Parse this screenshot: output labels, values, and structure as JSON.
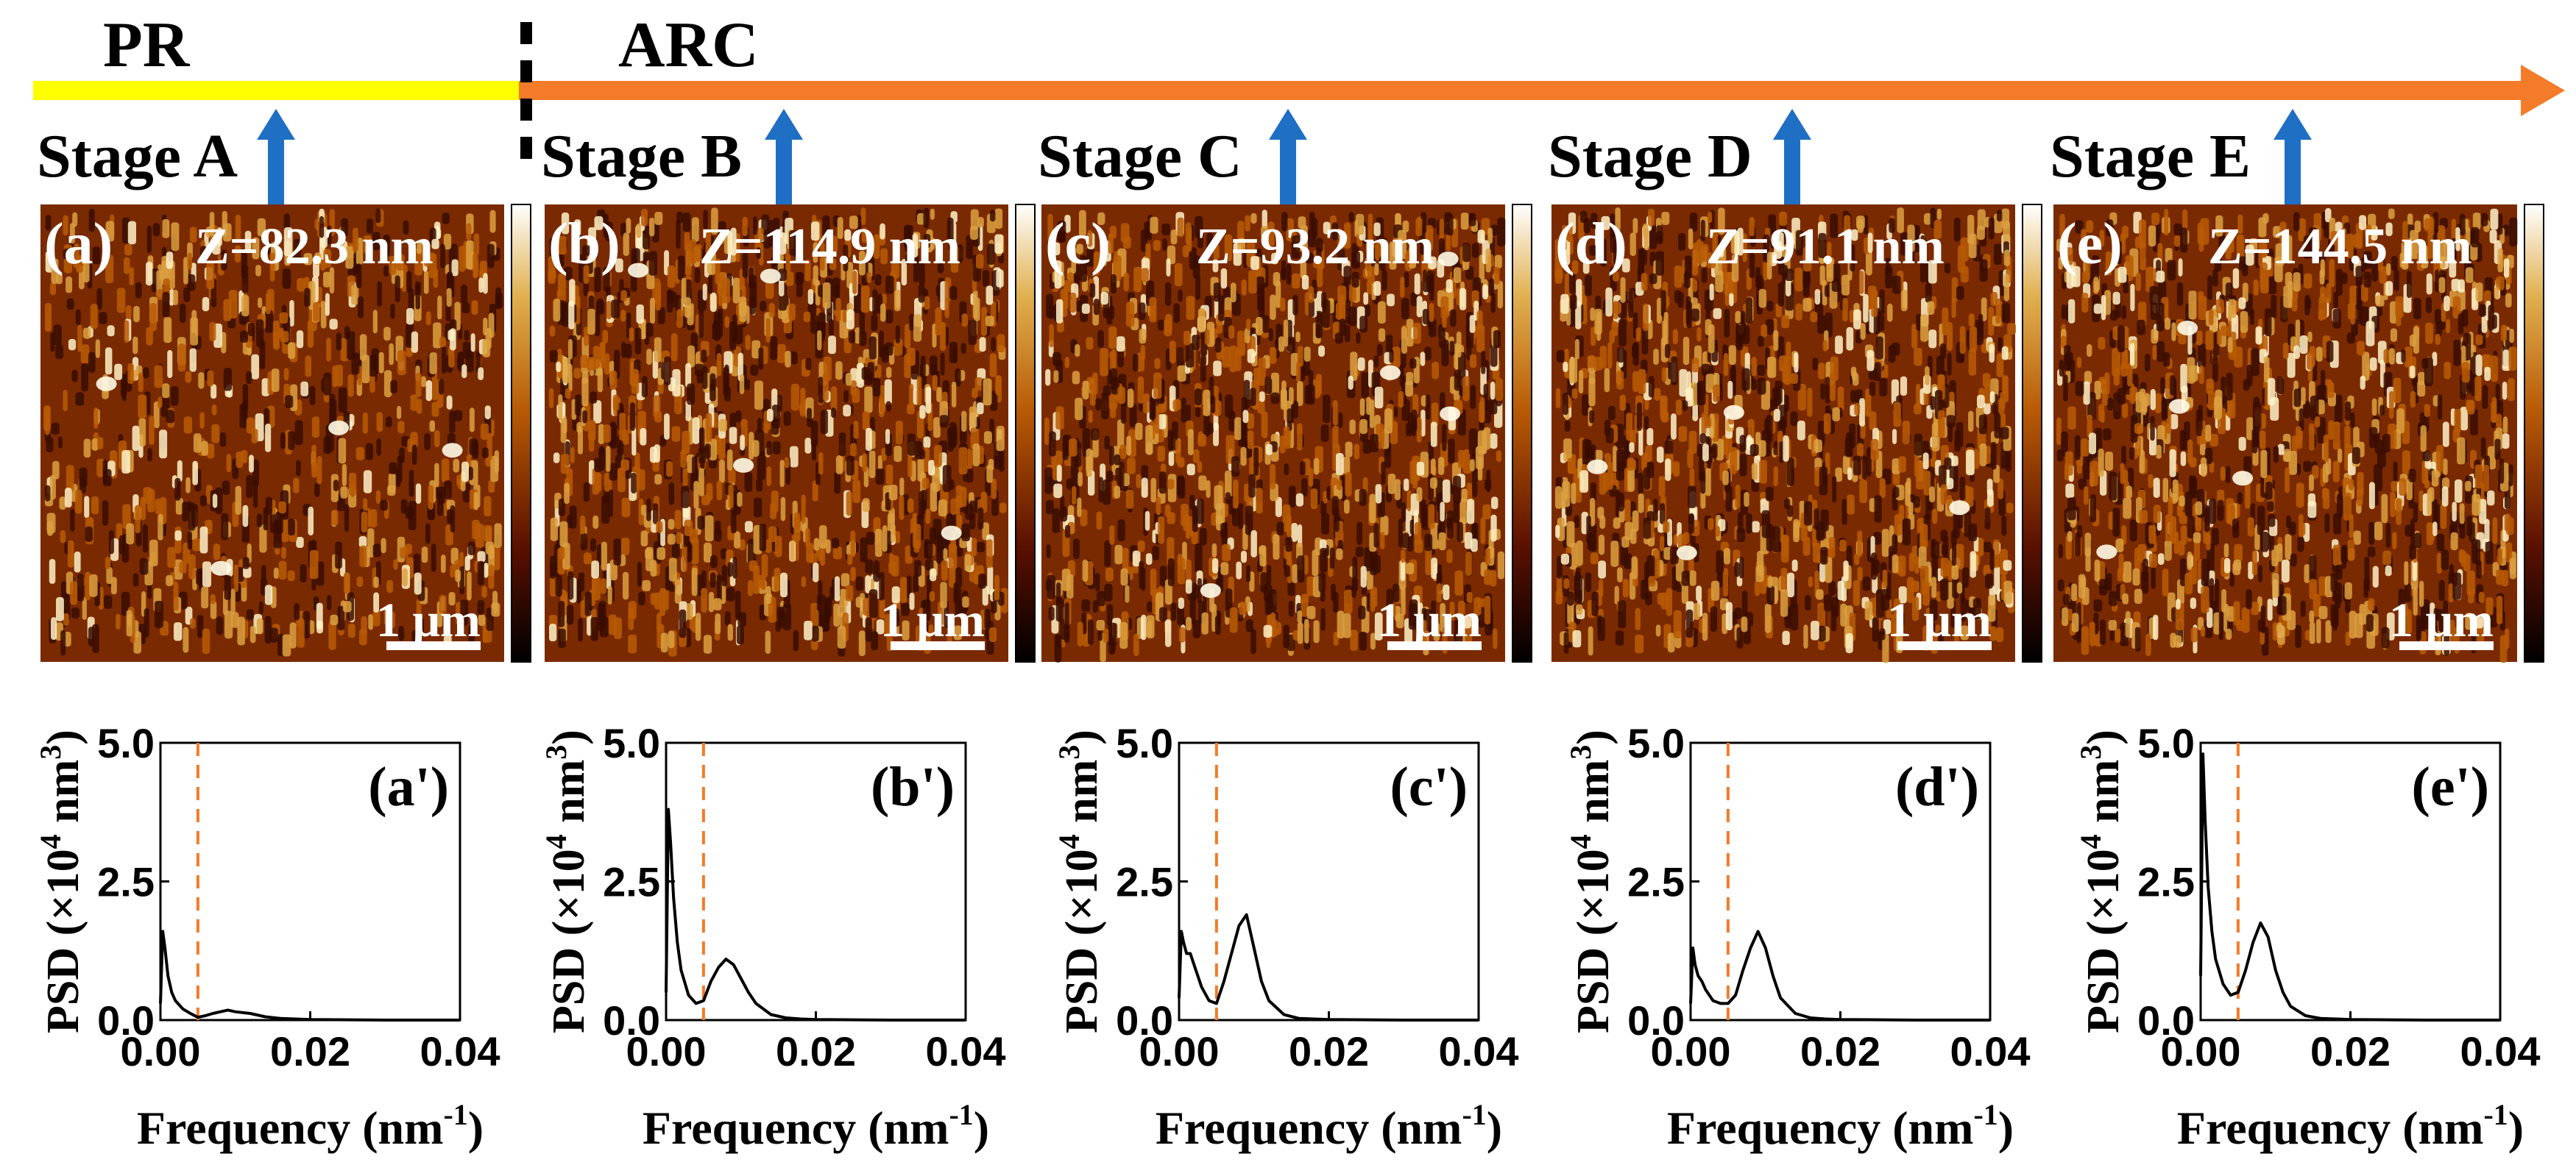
{
  "timeline": {
    "phase_pr": "PR",
    "phase_arc": "ARC",
    "colors": {
      "pr": "#ffff00",
      "arc": "#f47b29",
      "marker": "#1f6fc4",
      "divider": "#000000"
    }
  },
  "panels": [
    {
      "stage": "Stage A",
      "label": "(a)",
      "z": "Z=82.3 nm",
      "scale": "1 μm",
      "psd_label": "(a')"
    },
    {
      "stage": "Stage B",
      "label": "(b)",
      "z": "Z=114.9 nm",
      "scale": "1 μm",
      "psd_label": "(b')"
    },
    {
      "stage": "Stage C",
      "label": "(c)",
      "z": "Z=93.2 nm",
      "scale": "1 μm",
      "psd_label": "(c')"
    },
    {
      "stage": "Stage D",
      "label": "(d)",
      "z": "Z=91.1 nm",
      "scale": "1 μm",
      "psd_label": "(d')"
    },
    {
      "stage": "Stage E",
      "label": "(e)",
      "z": "Z=144.5 nm",
      "scale": "1 μm",
      "psd_label": "(e')"
    }
  ],
  "afm_colors": [
    "#0a0200",
    "#3a0d00",
    "#7a2a00",
    "#b85a05",
    "#dca040",
    "#fff2c8"
  ],
  "axes": {
    "ylabel_main": "PSD (×10",
    "ylabel_sup": "4",
    "ylabel_unit": " nm",
    "ylabel_unit_sup": "3",
    "ylabel_close": ")",
    "xlabel_main": "Frequency (nm",
    "xlabel_sup": "-1",
    "xlabel_close": ")",
    "xticks": [
      "0.00",
      "0.02",
      "0.04"
    ],
    "yticks": [
      "0.0",
      "2.5",
      "5.0"
    ]
  },
  "chart_data": [
    {
      "type": "line",
      "title": "(a')",
      "xlim": [
        0,
        0.04
      ],
      "ylim": [
        0,
        5.0
      ],
      "cutoff": 0.005,
      "x": [
        0.0,
        0.0003,
        0.0006,
        0.001,
        0.0015,
        0.002,
        0.003,
        0.004,
        0.005,
        0.006,
        0.007,
        0.008,
        0.009,
        0.01,
        0.012,
        0.014,
        0.016,
        0.018,
        0.02,
        0.03,
        0.04
      ],
      "y": [
        0.3,
        1.6,
        1.3,
        0.8,
        0.5,
        0.35,
        0.2,
        0.12,
        0.05,
        0.08,
        0.12,
        0.15,
        0.18,
        0.15,
        0.12,
        0.06,
        0.03,
        0.02,
        0.01,
        0.0,
        0.0
      ]
    },
    {
      "type": "line",
      "title": "(b')",
      "xlim": [
        0,
        0.04
      ],
      "ylim": [
        0,
        5.0
      ],
      "cutoff": 0.005,
      "x": [
        0.0,
        0.0003,
        0.0006,
        0.001,
        0.0015,
        0.002,
        0.003,
        0.004,
        0.005,
        0.006,
        0.007,
        0.008,
        0.009,
        0.01,
        0.011,
        0.012,
        0.014,
        0.016,
        0.018,
        0.02,
        0.03,
        0.04
      ],
      "y": [
        0.5,
        3.8,
        3.2,
        2.2,
        1.4,
        0.9,
        0.45,
        0.3,
        0.35,
        0.7,
        0.95,
        1.1,
        1.0,
        0.75,
        0.5,
        0.3,
        0.1,
        0.04,
        0.02,
        0.01,
        0.0,
        0.0
      ]
    },
    {
      "type": "line",
      "title": "(c')",
      "xlim": [
        0,
        0.04
      ],
      "ylim": [
        0,
        5.0
      ],
      "cutoff": 0.005,
      "x": [
        0.0,
        0.0003,
        0.0006,
        0.001,
        0.0015,
        0.002,
        0.003,
        0.004,
        0.005,
        0.006,
        0.007,
        0.008,
        0.009,
        0.01,
        0.011,
        0.012,
        0.014,
        0.016,
        0.018,
        0.02,
        0.03,
        0.04
      ],
      "y": [
        0.4,
        1.6,
        1.4,
        1.2,
        1.2,
        1.0,
        0.6,
        0.35,
        0.3,
        0.7,
        1.2,
        1.7,
        1.9,
        1.3,
        0.7,
        0.35,
        0.1,
        0.03,
        0.02,
        0.01,
        0.0,
        0.0
      ]
    },
    {
      "type": "line",
      "title": "(d')",
      "xlim": [
        0,
        0.04
      ],
      "ylim": [
        0,
        5.0
      ],
      "cutoff": 0.005,
      "x": [
        0.0,
        0.0003,
        0.0006,
        0.001,
        0.0015,
        0.002,
        0.003,
        0.004,
        0.005,
        0.006,
        0.007,
        0.008,
        0.009,
        0.01,
        0.011,
        0.012,
        0.014,
        0.016,
        0.018,
        0.02,
        0.03,
        0.04
      ],
      "y": [
        0.3,
        1.3,
        1.0,
        0.8,
        0.7,
        0.55,
        0.35,
        0.3,
        0.3,
        0.45,
        0.9,
        1.3,
        1.6,
        1.3,
        0.8,
        0.4,
        0.12,
        0.04,
        0.02,
        0.01,
        0.0,
        0.0
      ]
    },
    {
      "type": "line",
      "title": "(e')",
      "xlim": [
        0,
        0.04
      ],
      "ylim": [
        0,
        5.0
      ],
      "cutoff": 0.005,
      "x": [
        0.0,
        0.0003,
        0.0006,
        0.001,
        0.0015,
        0.002,
        0.003,
        0.004,
        0.005,
        0.006,
        0.007,
        0.008,
        0.009,
        0.01,
        0.011,
        0.012,
        0.014,
        0.016,
        0.018,
        0.02,
        0.03,
        0.04
      ],
      "y": [
        0.8,
        4.8,
        3.6,
        2.4,
        1.6,
        1.1,
        0.65,
        0.45,
        0.5,
        0.9,
        1.4,
        1.75,
        1.5,
        0.9,
        0.5,
        0.25,
        0.08,
        0.03,
        0.02,
        0.01,
        0.0,
        0.0
      ]
    }
  ]
}
